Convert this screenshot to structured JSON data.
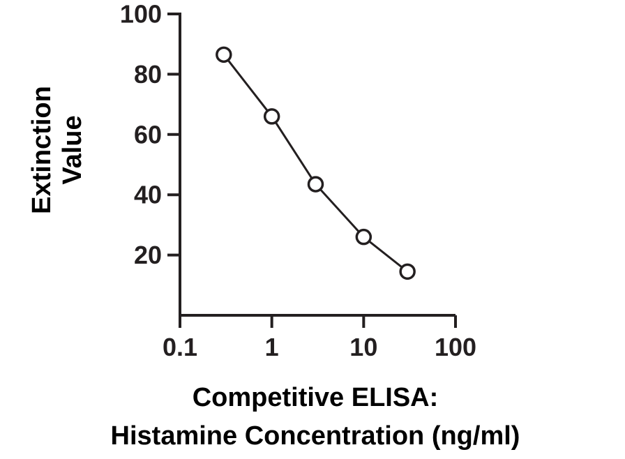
{
  "chart_data": {
    "type": "line",
    "xlabel": [
      "Competitive ELISA:",
      "Histamine Concentration (ng/ml)"
    ],
    "ylabel": [
      "Extinction",
      "Value"
    ],
    "x_scale": "log",
    "xlim": [
      0.1,
      100
    ],
    "ylim": [
      0,
      100
    ],
    "x_ticks": [
      0.1,
      1,
      10,
      100
    ],
    "x_tick_labels": [
      "0.1",
      "1",
      "10",
      "100"
    ],
    "y_ticks": [
      20,
      40,
      60,
      80,
      100
    ],
    "y_tick_labels": [
      "20",
      "40",
      "60",
      "80",
      "100"
    ],
    "grid": false,
    "series": [
      {
        "x": [
          0.3,
          1,
          3,
          10,
          30
        ],
        "y": [
          86.5,
          66,
          43.5,
          26,
          14.5
        ],
        "marker": "open-circle",
        "color": "#231f20"
      }
    ]
  }
}
